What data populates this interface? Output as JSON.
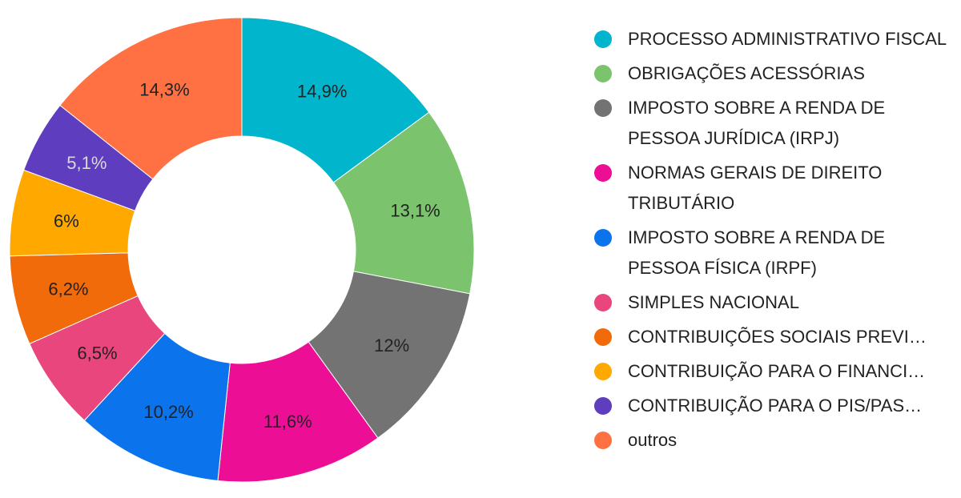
{
  "chart_data": {
    "type": "pie",
    "donut": true,
    "legend_position": "right",
    "slices": [
      {
        "label": "PROCESSO ADMINISTRATIVO FISCAL",
        "value": 14.9,
        "display": "14,9%",
        "color": "#00b5cc",
        "label_color": "#222222"
      },
      {
        "label": "OBRIGAÇÕES ACESSÓRIAS",
        "value": 13.1,
        "display": "13,1%",
        "color": "#7cc36e",
        "label_color": "#222222"
      },
      {
        "label": "IMPOSTO SOBRE A RENDA DE PESSOA JURÍDICA (IRPJ)",
        "value": 12,
        "display": "12%",
        "color": "#737373",
        "label_color": "#222222"
      },
      {
        "label": "NORMAS GERAIS DE DIREITO TRIBUTÁRIO",
        "value": 11.6,
        "display": "11,6%",
        "color": "#ec0f96",
        "label_color": "#222222"
      },
      {
        "label": "IMPOSTO SOBRE A RENDA DE PESSOA FÍSICA (IRPF)",
        "value": 10.2,
        "display": "10,2%",
        "color": "#0b73ec",
        "label_color": "#222222"
      },
      {
        "label": "SIMPLES NACIONAL",
        "value": 6.5,
        "display": "6,5%",
        "color": "#e8467c",
        "label_color": "#222222"
      },
      {
        "label": "CONTRIBUIÇÕES SOCIAIS PREVI…",
        "value": 6.2,
        "display": "6,2%",
        "color": "#f26b0b",
        "label_color": "#222222"
      },
      {
        "label": "CONTRIBUIÇÃO PARA O FINANCI…",
        "value": 6,
        "display": "6%",
        "color": "#ffa800",
        "label_color": "#222222"
      },
      {
        "label": "CONTRIBUIÇÃO PARA O PIS/PAS…",
        "value": 5.1,
        "display": "5,1%",
        "color": "#5e3dbf",
        "label_color": "#d9d9d9"
      },
      {
        "label": "outros",
        "value": 14.3,
        "display": "14,3%",
        "color": "#ff7043",
        "label_color": "#222222"
      }
    ]
  }
}
